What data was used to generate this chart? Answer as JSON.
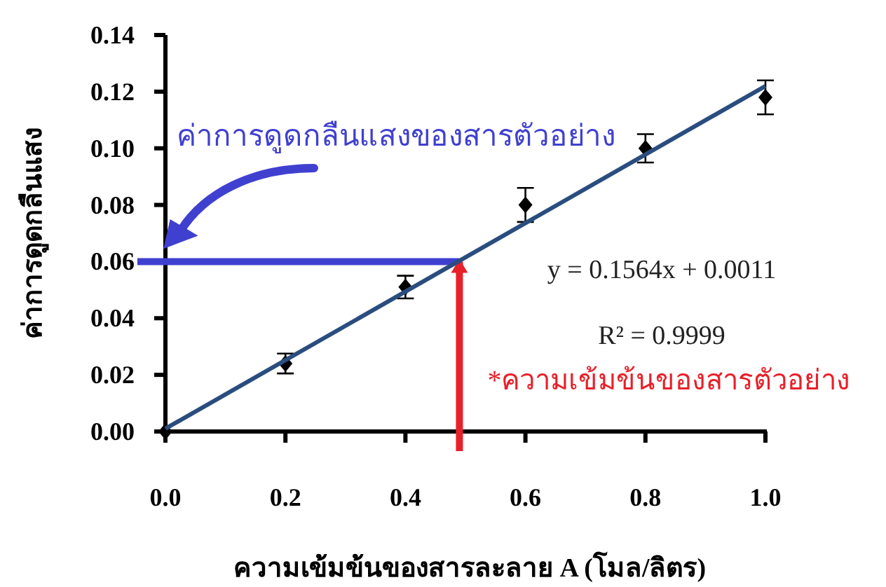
{
  "chart_data": {
    "type": "scatter",
    "xlabel": "ความเข้มข้นของสารละลาย A (โมล/ลิตร)",
    "ylabel": "ค่าการดูดกลืนแสง",
    "x": [
      0.0,
      0.2,
      0.4,
      0.6,
      0.8,
      1.0
    ],
    "series": [
      {
        "type": "scatter",
        "color": "#000000",
        "marker": "diamond",
        "values": [
          0.0,
          0.024,
          0.051,
          0.08,
          0.1,
          0.118
        ],
        "errors": [
          null,
          0.0035,
          0.004,
          0.006,
          0.005,
          0.006
        ]
      },
      {
        "type": "line",
        "color": "#2a4d7f",
        "x": [
          0.0,
          1.0
        ],
        "values": [
          0.001,
          0.122
        ]
      }
    ],
    "xlim": [
      0.0,
      1.0
    ],
    "ylim": [
      0.0,
      0.14
    ],
    "xticks": [
      {
        "value": 0.0,
        "label": "0.0"
      },
      {
        "value": 0.2,
        "label": "0.2"
      },
      {
        "value": 0.4,
        "label": "0.4"
      },
      {
        "value": 0.6,
        "label": "0.6"
      },
      {
        "value": 0.8,
        "label": "0.8"
      },
      {
        "value": 1.0,
        "label": "1.0"
      }
    ],
    "yticks": [
      {
        "value": 0.0,
        "label": "0.00"
      },
      {
        "value": 0.02,
        "label": "0.02"
      },
      {
        "value": 0.04,
        "label": "0.04"
      },
      {
        "value": 0.06,
        "label": "0.06"
      },
      {
        "value": 0.08,
        "label": "0.08"
      },
      {
        "value": 0.1,
        "label": "0.10"
      },
      {
        "value": 0.12,
        "label": "0.12"
      },
      {
        "value": 0.14,
        "label": "0.14"
      }
    ],
    "ref_lines": [
      {
        "axis": "y",
        "value": 0.06,
        "label": "ค่าการดูดกลืนแสงของสารตัวอย่าง",
        "color": "#4040d0"
      },
      {
        "axis": "x",
        "value": 0.49,
        "label": "*ความเข้มข้นของสารตัวอย่าง",
        "color": "#e8202a"
      }
    ],
    "annotations": [
      "y = 0.1564x + 0.0011",
      "R² = 0.9999"
    ],
    "grid": false
  }
}
